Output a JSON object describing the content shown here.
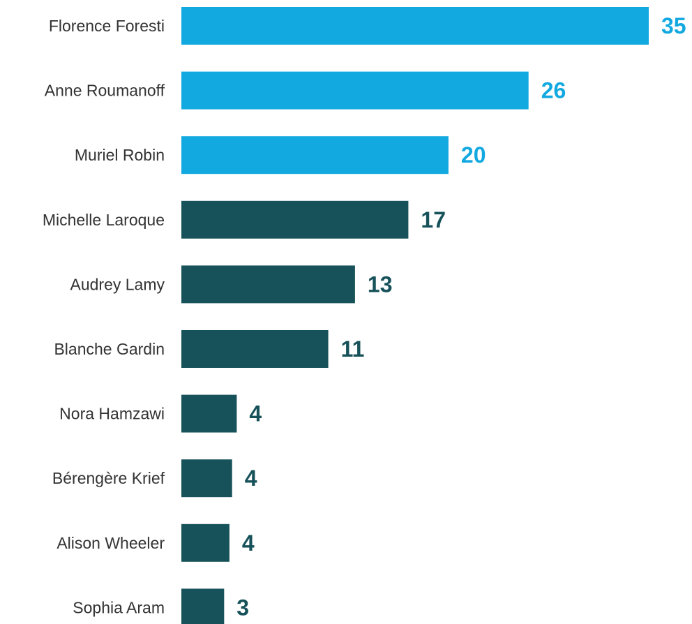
{
  "chart_data": {
    "type": "bar",
    "orientation": "horizontal",
    "categories": [
      "Florence Foresti",
      "Anne Roumanoff",
      "Muriel Robin",
      "Michelle Laroque",
      "Audrey Lamy",
      "Blanche Gardin",
      "Nora Hamzawi",
      "Bérengère Krief",
      "Alison Wheeler",
      "Sophia Aram"
    ],
    "values": [
      35,
      26,
      20,
      17,
      13,
      11,
      4,
      4,
      4,
      3
    ],
    "display_values": [
      "35",
      "26",
      "20",
      "17",
      "13",
      "11",
      "4",
      "4",
      "4",
      "3"
    ],
    "bar_shown_values": [
      35,
      26,
      20,
      17,
      13,
      11,
      4.15,
      3.8,
      3.6,
      3.2
    ],
    "colors": [
      "#12a8e0",
      "#12a8e0",
      "#12a8e0",
      "#17525a",
      "#17525a",
      "#17525a",
      "#17525a",
      "#17525a",
      "#17525a",
      "#17525a"
    ],
    "xlim": [
      0,
      35
    ],
    "grid": false,
    "legend": "none",
    "title": "",
    "xlabel": "",
    "ylabel": ""
  }
}
